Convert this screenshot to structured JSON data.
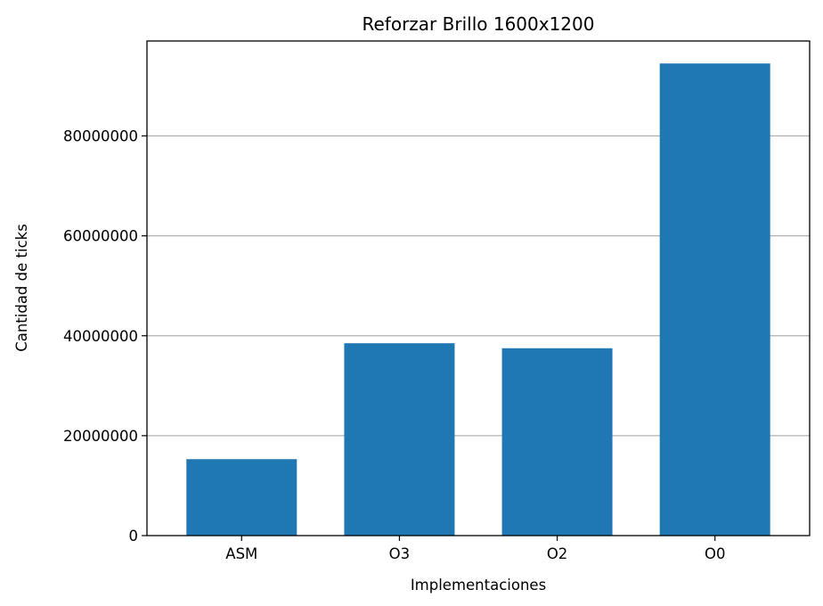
{
  "chart_data": {
    "type": "bar",
    "title": "Reforzar Brillo 1600x1200",
    "xlabel": "Implementaciones",
    "ylabel": "Cantidad de ticks",
    "categories": [
      "ASM",
      "O3",
      "O2",
      "O0"
    ],
    "values": [
      15300000,
      38500000,
      37500000,
      94500000
    ],
    "ylim": [
      0,
      99000000
    ],
    "yticks": [
      0,
      20000000,
      40000000,
      60000000,
      80000000
    ],
    "ytick_labels": [
      "0",
      "20000000",
      "40000000",
      "60000000",
      "80000000"
    ],
    "grid": {
      "y": true,
      "x": false
    },
    "bar_color": "#1f77b4",
    "grid_color": "#b0b0b0"
  }
}
